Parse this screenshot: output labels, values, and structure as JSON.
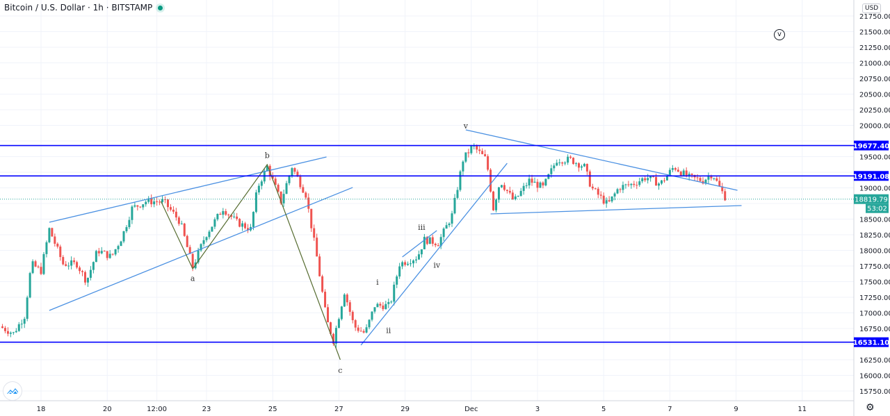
{
  "header": {
    "title": "Bitcoin / U.S. Dollar · 1h · BITSTAMP",
    "status": "market-open-dot"
  },
  "price_axis": {
    "currency": "USD"
  },
  "controls": {
    "wave_toggle": "v",
    "settings_icon": "gear-icon",
    "logo": "tradingview-logo"
  },
  "colors": {
    "up": "#26a69a",
    "down": "#ef5350",
    "hline": "#0000ff",
    "trend": "#4a90e2",
    "wave": "#556b2f",
    "current": "#26a69a"
  },
  "chart_data": {
    "type": "candlestick",
    "title": "Bitcoin / U.S. Dollar · 1h · BITSTAMP",
    "ylim": [
      15750,
      21750
    ],
    "y_ticks": [
      15750,
      16000,
      16250,
      16500,
      16750,
      17000,
      17250,
      17500,
      17750,
      18000,
      18250,
      18500,
      18750,
      19000,
      19250,
      19500,
      19750,
      20000,
      20250,
      20500,
      20750,
      21000,
      21250,
      21500,
      21750
    ],
    "x_ticks": [
      {
        "t": "Nov 18 00:00",
        "label": "18"
      },
      {
        "t": "Nov 20 00:00",
        "label": "20"
      },
      {
        "t": "Nov 21 12:00",
        "label": "12:00"
      },
      {
        "t": "Nov 23 00:00",
        "label": "23"
      },
      {
        "t": "Nov 25 00:00",
        "label": "25"
      },
      {
        "t": "Nov 27 00:00",
        "label": "27"
      },
      {
        "t": "Nov 29 00:00",
        "label": "29"
      },
      {
        "t": "Dec 1 00:00",
        "label": "Dec"
      },
      {
        "t": "Dec 3 00:00",
        "label": "3"
      },
      {
        "t": "Dec 5 00:00",
        "label": "5"
      },
      {
        "t": "Dec 7 00:00",
        "label": "7"
      },
      {
        "t": "Dec 9 00:00",
        "label": "9"
      },
      {
        "t": "Dec 11 00:00",
        "label": "11"
      }
    ],
    "grid": true,
    "price_path": [
      [
        "Nov 16 18:00",
        16783
      ],
      [
        "Nov 17 04:00",
        16672
      ],
      [
        "Nov 17 12:00",
        16950
      ],
      [
        "Nov 17 17:00",
        17783
      ],
      [
        "Nov 18 00:00",
        17672
      ],
      [
        "Nov 18 06:00",
        18339
      ],
      [
        "Nov 18 16:00",
        17783
      ],
      [
        "Nov 19 02:00",
        17783
      ],
      [
        "Nov 19 09:00",
        17505
      ],
      [
        "Nov 19 17:00",
        18005
      ],
      [
        "Nov 20 03:00",
        17894
      ],
      [
        "Nov 20 11:00",
        18228
      ],
      [
        "Nov 20 18:00",
        18672
      ],
      [
        "Nov 21 04:00",
        18783
      ],
      [
        "Nov 21 17:00",
        18783
      ],
      [
        "Nov 22 05:00",
        18450
      ],
      [
        "Nov 22 14:00",
        17728
      ],
      [
        "Nov 22 23:00",
        18228
      ],
      [
        "Nov 23 12:00",
        18672
      ],
      [
        "Nov 23 22:00",
        18450
      ],
      [
        "Nov 24 08:00",
        18339
      ],
      [
        "Nov 24 13:00",
        19005
      ],
      [
        "Nov 24 20:00",
        19339
      ],
      [
        "Nov 25 06:00",
        18783
      ],
      [
        "Nov 25 14:00",
        19339
      ],
      [
        "Nov 26 00:00",
        18894
      ],
      [
        "Nov 26 08:00",
        17894
      ],
      [
        "Nov 26 15:00",
        16894
      ],
      [
        "Nov 26 20:00",
        16561
      ],
      [
        "Nov 27 04:00",
        17339
      ],
      [
        "Nov 27 11:00",
        16783
      ],
      [
        "Nov 27 19:00",
        16672
      ],
      [
        "Nov 28 02:00",
        17117
      ],
      [
        "Nov 28 13:00",
        17117
      ],
      [
        "Nov 28 20:00",
        17783
      ],
      [
        "Nov 29 09:00",
        17894
      ],
      [
        "Nov 29 14:00",
        18172
      ],
      [
        "Nov 30 00:00",
        18117
      ],
      [
        "Nov 30 10:00",
        18561
      ],
      [
        "Nov 30 18:00",
        19450
      ],
      [
        "Dec 1 01:00",
        19672
      ],
      [
        "Dec 1 11:00",
        19450
      ],
      [
        "Dec 1 16:00",
        18672
      ],
      [
        "Dec 1 21:00",
        19117
      ],
      [
        "Dec 2 07:00",
        18783
      ],
      [
        "Dec 2 18:00",
        19117
      ],
      [
        "Dec 3 04:00",
        19005
      ],
      [
        "Dec 3 14:00",
        19450
      ],
      [
        "Dec 4 00:00",
        19450
      ],
      [
        "Dec 4 10:00",
        19339
      ],
      [
        "Dec 4 15:00",
        19005
      ],
      [
        "Dec 5 03:00",
        18728
      ],
      [
        "Dec 5 11:00",
        19005
      ],
      [
        "Dec 5 21:00",
        19061
      ],
      [
        "Dec 6 07:00",
        19172
      ],
      [
        "Dec 6 17:00",
        19061
      ],
      [
        "Dec 7 03:00",
        19339
      ],
      [
        "Dec 7 13:00",
        19172
      ],
      [
        "Dec 8 00:00",
        19117
      ],
      [
        "Dec 8 07:00",
        19228
      ],
      [
        "Dec 8 12:00",
        19005
      ],
      [
        "Dec 8 17:00",
        18820
      ]
    ],
    "horizontal_lines": [
      {
        "price": 19677.4,
        "label": "19677.40"
      },
      {
        "price": 19191.08,
        "label": "19191.08"
      },
      {
        "price": 16531.1,
        "label": "16531.10"
      }
    ],
    "current_price": {
      "price": 18819.79,
      "label": "18819.79",
      "countdown": "53:02"
    },
    "trend_lines": [
      [
        [
          "Nov 18 06:00",
          18450
        ],
        [
          "Nov 26 15:00",
          19494
        ]
      ],
      [
        [
          "Nov 18 06:00",
          17039
        ],
        [
          "Nov 27 10:00",
          19006
        ]
      ],
      [
        [
          "Nov 28 22:00",
          17894
        ],
        [
          "Nov 29 23:00",
          18317
        ]
      ],
      [
        [
          "Nov 27 16:00",
          16483
        ],
        [
          "Dec 2 02:00",
          19394
        ]
      ],
      [
        [
          "Nov 30 20:00",
          19928
        ],
        [
          "Dec 9 01:00",
          18961
        ]
      ],
      [
        [
          "Dec 1 14:00",
          18583
        ],
        [
          "Dec 9 04:00",
          18717
        ]
      ]
    ],
    "wave_path": [
      [
        "Nov 21 15:00",
        18783
      ],
      [
        "Nov 22 14:00",
        17706
      ],
      [
        "Nov 24 20:00",
        19372
      ],
      [
        "Nov 27 01:00",
        16250
      ]
    ],
    "wave_labels": [
      {
        "t": "Nov 30 20:00",
        "price": 19950,
        "label": "v"
      },
      {
        "t": "Nov 24 20:00",
        "price": 19480,
        "label": "b"
      },
      {
        "t": "Nov 22 14:00",
        "price": 17510,
        "label": "a"
      },
      {
        "t": "Nov 29 12:00",
        "price": 18330,
        "label": "iii"
      },
      {
        "t": "Nov 29 23:00",
        "price": 17720,
        "label": "iv"
      },
      {
        "t": "Nov 28 04:00",
        "price": 17450,
        "label": "i"
      },
      {
        "t": "Nov 28 12:00",
        "price": 16680,
        "label": "ii"
      },
      {
        "t": "Nov 27 01:00",
        "price": 16040,
        "label": "c"
      }
    ]
  }
}
